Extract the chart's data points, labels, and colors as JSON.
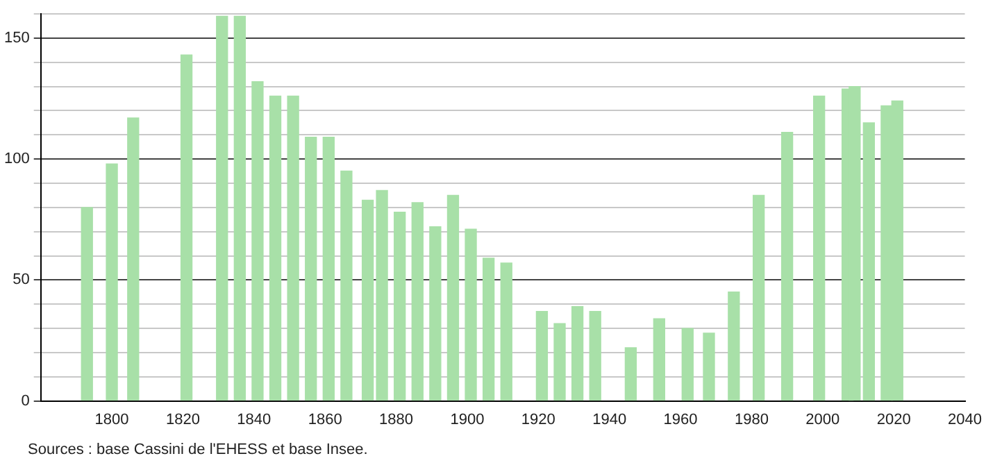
{
  "chart_data": {
    "type": "bar",
    "x": [
      1793,
      1800,
      1806,
      1821,
      1831,
      1836,
      1841,
      1846,
      1851,
      1856,
      1861,
      1866,
      1872,
      1876,
      1881,
      1886,
      1891,
      1896,
      1901,
      1906,
      1911,
      1921,
      1926,
      1931,
      1936,
      1946,
      1954,
      1962,
      1968,
      1975,
      1982,
      1990,
      1999,
      2007,
      2009,
      2013,
      2018,
      2021
    ],
    "values": [
      80,
      98,
      117,
      143,
      159,
      159,
      132,
      126,
      126,
      109,
      109,
      95,
      83,
      87,
      78,
      82,
      72,
      85,
      71,
      59,
      57,
      37,
      32,
      39,
      37,
      22,
      34,
      30,
      28,
      45,
      85,
      111,
      126,
      129,
      130,
      115,
      122,
      124
    ],
    "color": "#a8e0a8",
    "xlim": [
      1780,
      2040
    ],
    "xticks": [
      1800,
      1820,
      1840,
      1860,
      1880,
      1900,
      1920,
      1940,
      1960,
      1980,
      2000,
      2020,
      2040
    ],
    "ylim": [
      0,
      160
    ],
    "yticks": [
      0,
      {
        "value": 10,
        "label": null
      },
      {
        "value": 20,
        "label": null
      },
      {
        "value": 30,
        "label": null
      },
      {
        "value": 40,
        "label": null
      },
      50,
      {
        "value": 60,
        "label": null
      },
      {
        "value": 70,
        "label": null
      },
      {
        "value": 80,
        "label": null
      },
      {
        "value": 90,
        "label": null
      },
      100,
      {
        "value": 110,
        "label": null
      },
      {
        "value": 120,
        "label": null
      },
      {
        "value": 130,
        "label": null
      },
      {
        "value": 140,
        "label": null
      },
      150,
      {
        "value": 160,
        "label": null
      }
    ],
    "grid": "y",
    "annotations": [
      "Sources : base Cassini de l'EHESS et base Insee."
    ]
  }
}
